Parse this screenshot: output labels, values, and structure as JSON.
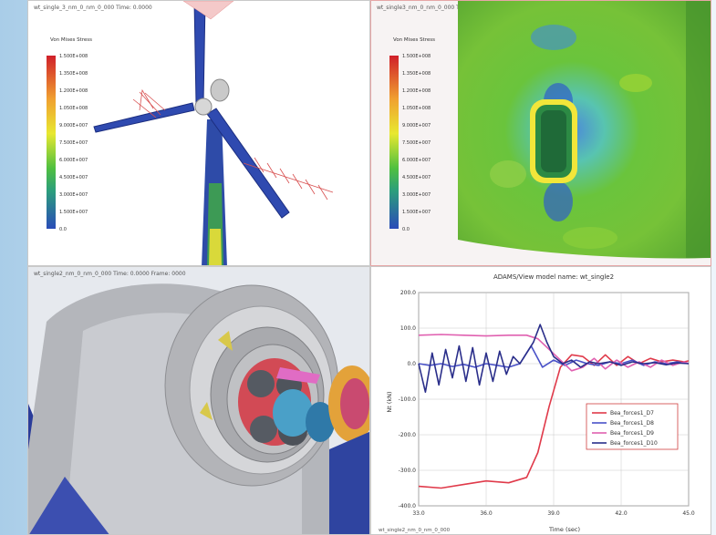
{
  "panels": {
    "top_left": {
      "title": "wt_single_3_nm_0_nm_0_000   Time: 0.0000",
      "legend": {
        "title": "Von Mises Stress",
        "values": [
          "1.500E+008",
          "1.350E+008",
          "1.200E+008",
          "1.050E+008",
          "9.000E+007",
          "7.500E+007",
          "6.000E+007",
          "4.500E+007",
          "3.000E+007",
          "1.500E+007",
          "0.0"
        ]
      }
    },
    "top_right": {
      "title": "wt_single3_nm_0_nm_0_000   Time: 0.0000   Frame: 0",
      "legend": {
        "title": "Von Mises Stress",
        "values": [
          "1.500E+008",
          "1.350E+008",
          "1.200E+008",
          "1.050E+008",
          "9.000E+007",
          "7.500E+007",
          "6.000E+007",
          "4.500E+007",
          "3.000E+007",
          "1.500E+007",
          "0.0"
        ]
      }
    },
    "bottom_left": {
      "title": "wt_single2_nm_0_nm_0_000   Time: 0.0000   Frame: 0000"
    },
    "bottom_right": {
      "chart_title": "ADAMS/View model name: wt_single2",
      "footer_left": "wt_single2_nm_0_nm_0_000"
    }
  },
  "chart_data": {
    "type": "line",
    "title": "ADAMS/View model name: wt_single2",
    "xlabel": "Time (sec)",
    "ylabel": "Nt (kN)",
    "xlim": [
      33.0,
      45.0
    ],
    "ylim": [
      -400.0,
      200.0
    ],
    "x_ticks": [
      "33.0",
      "36.0",
      "39.0",
      "42.0",
      "45.0"
    ],
    "y_ticks": [
      "200.0",
      "100.0",
      "0.0",
      "-100.0",
      "-200.0",
      "-300.0",
      "-400.0"
    ],
    "grid": true,
    "legend_position": "bottom-right",
    "series": [
      {
        "name": "Bea_forces1_D7",
        "color": "#e03a4a",
        "x": [
          33.0,
          34.0,
          35.0,
          36.0,
          37.0,
          37.8,
          38.3,
          38.8,
          39.3,
          39.8,
          40.3,
          40.8,
          41.3,
          41.8,
          42.3,
          42.8,
          43.3,
          43.8,
          44.3,
          44.8,
          45.0
        ],
        "y": [
          -345,
          -350,
          -340,
          -330,
          -335,
          -320,
          -250,
          -120,
          -10,
          25,
          20,
          -5,
          25,
          -5,
          20,
          0,
          15,
          5,
          10,
          5,
          8
        ]
      },
      {
        "name": "Bea_forces1_D8",
        "color": "#4a52c8",
        "x": [
          33.0,
          33.5,
          34.0,
          34.5,
          35.0,
          35.5,
          36.0,
          36.5,
          37.0,
          37.5,
          38.0,
          38.5,
          39.0,
          39.5,
          40.0,
          40.5,
          41.0,
          41.5,
          42.0,
          42.5,
          43.0,
          43.5,
          44.0,
          44.5,
          45.0
        ],
        "y": [
          0,
          -5,
          0,
          -8,
          -2,
          -10,
          0,
          -5,
          -10,
          0,
          50,
          -10,
          10,
          -5,
          10,
          0,
          -5,
          5,
          0,
          10,
          -5,
          5,
          0,
          5,
          0
        ]
      },
      {
        "name": "Bea_forces1_D9",
        "color": "#e060b0",
        "x": [
          33.0,
          34.0,
          35.0,
          36.0,
          37.0,
          37.8,
          38.3,
          38.8,
          39.3,
          39.8,
          40.3,
          40.8,
          41.3,
          41.8,
          42.3,
          42.8,
          43.3,
          43.8,
          44.3,
          44.8,
          45.0
        ],
        "y": [
          80,
          82,
          80,
          78,
          80,
          80,
          70,
          40,
          10,
          -20,
          -10,
          15,
          -15,
          10,
          -10,
          5,
          -10,
          10,
          -5,
          5,
          0
        ]
      },
      {
        "name": "Bea_forces1_D10",
        "color": "#2a2e8a",
        "x": [
          33.0,
          33.3,
          33.6,
          33.9,
          34.2,
          34.5,
          34.8,
          35.1,
          35.4,
          35.7,
          36.0,
          36.3,
          36.6,
          36.9,
          37.2,
          37.5,
          37.8,
          38.1,
          38.4,
          38.7,
          39.0,
          39.4,
          39.8,
          40.2,
          40.6,
          41.0,
          41.5,
          42.0,
          42.5,
          43.0,
          43.5,
          44.0,
          44.5,
          45.0
        ],
        "y": [
          0,
          -80,
          30,
          -60,
          40,
          -40,
          50,
          -50,
          45,
          -60,
          30,
          -50,
          35,
          -30,
          20,
          0,
          30,
          60,
          110,
          60,
          20,
          0,
          10,
          -10,
          5,
          0,
          5,
          -5,
          5,
          0,
          3,
          -3,
          2,
          0
        ]
      }
    ]
  }
}
